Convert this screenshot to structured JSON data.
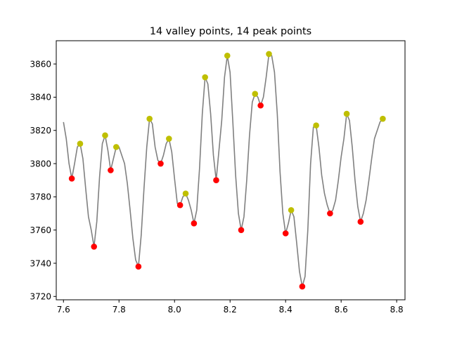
{
  "chart_data": {
    "type": "line",
    "title": "14 valley points, 14 peak points",
    "xlabel": "",
    "ylabel": "",
    "xlim": [
      7.574,
      8.83
    ],
    "ylim": [
      3718,
      3874
    ],
    "xticks": [
      7.6,
      7.8,
      8.0,
      8.2,
      8.4,
      8.6,
      8.8
    ],
    "xtick_labels": [
      "7.6",
      "7.8",
      "8.0",
      "8.2",
      "8.4",
      "8.6",
      "8.8"
    ],
    "yticks": [
      3720,
      3740,
      3760,
      3780,
      3800,
      3820,
      3840,
      3860
    ],
    "ytick_labels": [
      "3720",
      "3740",
      "3760",
      "3780",
      "3800",
      "3820",
      "3840",
      "3860"
    ],
    "grid": false,
    "series": [
      {
        "role": "signal",
        "color": "#808080",
        "points": [
          [
            7.6,
            3825
          ],
          [
            7.61,
            3815
          ],
          [
            7.62,
            3800
          ],
          [
            7.63,
            3791
          ],
          [
            7.64,
            3800
          ],
          [
            7.65,
            3810
          ],
          [
            7.66,
            3812
          ],
          [
            7.67,
            3803
          ],
          [
            7.68,
            3785
          ],
          [
            7.69,
            3768
          ],
          [
            7.7,
            3760
          ],
          [
            7.71,
            3750
          ],
          [
            7.72,
            3765
          ],
          [
            7.73,
            3792
          ],
          [
            7.74,
            3812
          ],
          [
            7.75,
            3817
          ],
          [
            7.76,
            3808
          ],
          [
            7.77,
            3796
          ],
          [
            7.78,
            3803
          ],
          [
            7.79,
            3810
          ],
          [
            7.8,
            3810
          ],
          [
            7.81,
            3805
          ],
          [
            7.82,
            3800
          ],
          [
            7.83,
            3788
          ],
          [
            7.84,
            3772
          ],
          [
            7.85,
            3755
          ],
          [
            7.86,
            3742
          ],
          [
            7.87,
            3738
          ],
          [
            7.88,
            3757
          ],
          [
            7.89,
            3785
          ],
          [
            7.9,
            3810
          ],
          [
            7.91,
            3827
          ],
          [
            7.92,
            3824
          ],
          [
            7.93,
            3810
          ],
          [
            7.94,
            3802
          ],
          [
            7.95,
            3800
          ],
          [
            7.96,
            3805
          ],
          [
            7.97,
            3812
          ],
          [
            7.98,
            3815
          ],
          [
            7.99,
            3807
          ],
          [
            8.0,
            3791
          ],
          [
            8.01,
            3776
          ],
          [
            8.02,
            3775
          ],
          [
            8.03,
            3780
          ],
          [
            8.04,
            3782
          ],
          [
            8.05,
            3778
          ],
          [
            8.06,
            3772
          ],
          [
            8.07,
            3764
          ],
          [
            8.08,
            3772
          ],
          [
            8.09,
            3797
          ],
          [
            8.1,
            3830
          ],
          [
            8.11,
            3852
          ],
          [
            8.12,
            3848
          ],
          [
            8.13,
            3830
          ],
          [
            8.14,
            3805
          ],
          [
            8.15,
            3790
          ],
          [
            8.16,
            3808
          ],
          [
            8.17,
            3826
          ],
          [
            8.18,
            3852
          ],
          [
            8.19,
            3865
          ],
          [
            8.2,
            3855
          ],
          [
            8.21,
            3825
          ],
          [
            8.22,
            3793
          ],
          [
            8.23,
            3770
          ],
          [
            8.24,
            3760
          ],
          [
            8.25,
            3768
          ],
          [
            8.26,
            3790
          ],
          [
            8.27,
            3817
          ],
          [
            8.28,
            3837
          ],
          [
            8.29,
            3842
          ],
          [
            8.3,
            3840
          ],
          [
            8.31,
            3835
          ],
          [
            8.32,
            3840
          ],
          [
            8.33,
            3852
          ],
          [
            8.34,
            3866
          ],
          [
            8.35,
            3865
          ],
          [
            8.36,
            3855
          ],
          [
            8.37,
            3830
          ],
          [
            8.38,
            3795
          ],
          [
            8.39,
            3770
          ],
          [
            8.4,
            3758
          ],
          [
            8.41,
            3764
          ],
          [
            8.42,
            3772
          ],
          [
            8.43,
            3768
          ],
          [
            8.44,
            3752
          ],
          [
            8.45,
            3735
          ],
          [
            8.46,
            3726
          ],
          [
            8.47,
            3732
          ],
          [
            8.48,
            3760
          ],
          [
            8.49,
            3800
          ],
          [
            8.5,
            3822
          ],
          [
            8.51,
            3823
          ],
          [
            8.52,
            3810
          ],
          [
            8.53,
            3793
          ],
          [
            8.54,
            3782
          ],
          [
            8.55,
            3775
          ],
          [
            8.56,
            3770
          ],
          [
            8.57,
            3772
          ],
          [
            8.58,
            3778
          ],
          [
            8.59,
            3790
          ],
          [
            8.6,
            3804
          ],
          [
            8.61,
            3815
          ],
          [
            8.62,
            3830
          ],
          [
            8.63,
            3826
          ],
          [
            8.64,
            3810
          ],
          [
            8.65,
            3790
          ],
          [
            8.66,
            3774
          ],
          [
            8.67,
            3765
          ],
          [
            8.68,
            3770
          ],
          [
            8.69,
            3778
          ],
          [
            8.7,
            3790
          ],
          [
            8.71,
            3803
          ],
          [
            8.72,
            3815
          ],
          [
            8.73,
            3820
          ],
          [
            8.74,
            3825
          ],
          [
            8.75,
            3827
          ]
        ]
      },
      {
        "role": "valleys",
        "color": "#ff0000",
        "points": [
          [
            7.63,
            3791
          ],
          [
            7.71,
            3750
          ],
          [
            7.77,
            3796
          ],
          [
            7.87,
            3738
          ],
          [
            7.95,
            3800
          ],
          [
            8.02,
            3775
          ],
          [
            8.07,
            3764
          ],
          [
            8.15,
            3790
          ],
          [
            8.24,
            3760
          ],
          [
            8.31,
            3835
          ],
          [
            8.4,
            3758
          ],
          [
            8.46,
            3726
          ],
          [
            8.56,
            3770
          ],
          [
            8.67,
            3765
          ]
        ]
      },
      {
        "role": "peaks",
        "color": "#bfbf00",
        "points": [
          [
            7.66,
            3812
          ],
          [
            7.75,
            3817
          ],
          [
            7.79,
            3810
          ],
          [
            7.91,
            3827
          ],
          [
            7.98,
            3815
          ],
          [
            8.04,
            3782
          ],
          [
            8.11,
            3852
          ],
          [
            8.19,
            3865
          ],
          [
            8.29,
            3842
          ],
          [
            8.34,
            3866
          ],
          [
            8.42,
            3772
          ],
          [
            8.51,
            3823
          ],
          [
            8.62,
            3830
          ],
          [
            8.75,
            3827
          ]
        ]
      }
    ]
  }
}
